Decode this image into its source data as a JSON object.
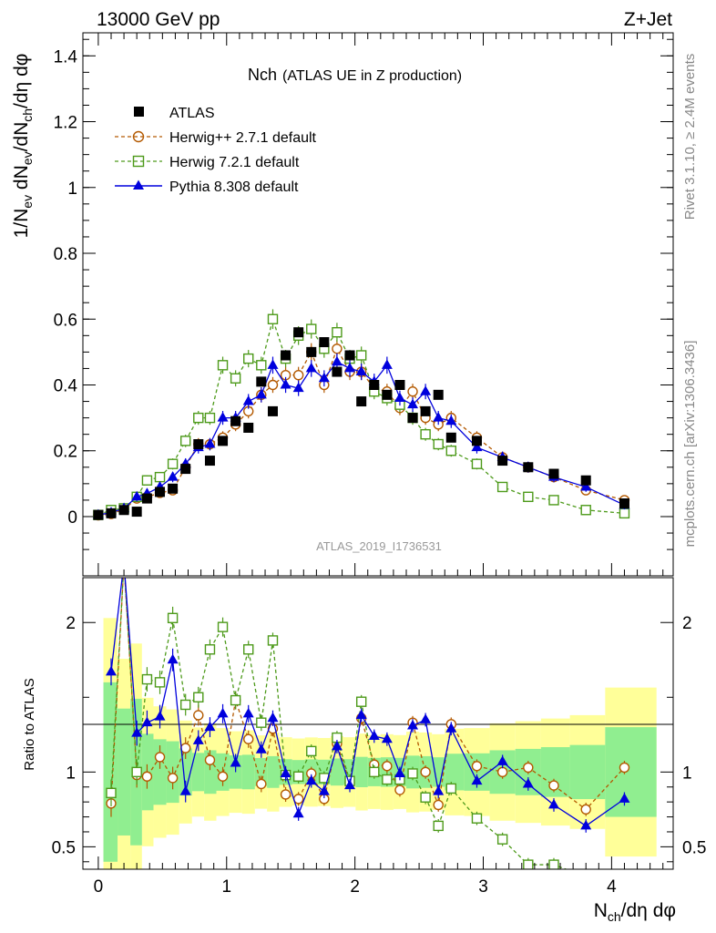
{
  "header": {
    "energy_label": "13000 GeV pp",
    "process_label": "Z+Jet",
    "rivet_label": "Rivet 3.1.10, ≥ 2.4M events",
    "mcplots_label": "mcplots.cern.ch [arXiv:1306.3436]",
    "analysis_label": "ATLAS_2019_I1736531"
  },
  "colors": {
    "data": "#000000",
    "herwigpp": "#b35900",
    "herwig7": "#4d9a1a",
    "pythia": "#0000dd",
    "band_inner": "#90ee90",
    "band_outer": "#ffff99"
  },
  "chart_data": [
    {
      "name": "main",
      "type": "scatter",
      "title_main": "Nch",
      "title_sub": "(ATLAS UE in Z production)",
      "ylabel": "1/N_ev dN_ev/dN_ch/dη dφ",
      "ylim": [
        -0.18,
        1.47
      ],
      "xlim": [
        -0.12,
        4.48
      ],
      "yticks": [
        "0",
        "0.2",
        "0.4",
        "0.6",
        "0.8",
        "1",
        "1.2",
        "1.4"
      ],
      "legend": [
        "ATLAS",
        "Herwig++ 2.7.1 default",
        "Herwig 7.2.1 default",
        "Pythia 8.308 default"
      ],
      "x": [
        0.0,
        0.1,
        0.2,
        0.3,
        0.38,
        0.48,
        0.58,
        0.68,
        0.78,
        0.87,
        0.97,
        1.07,
        1.17,
        1.27,
        1.36,
        1.46,
        1.56,
        1.66,
        1.76,
        1.86,
        1.96,
        2.05,
        2.15,
        2.25,
        2.35,
        2.45,
        2.55,
        2.65,
        2.75,
        2.95,
        3.15,
        3.35,
        3.55,
        3.8,
        4.1
      ],
      "series": [
        {
          "name": "ATLAS",
          "values": [
            0.005,
            0.01,
            0.02,
            0.015,
            0.055,
            0.075,
            0.085,
            0.145,
            0.22,
            0.17,
            0.23,
            0.29,
            0.27,
            0.41,
            0.32,
            0.49,
            0.56,
            0.5,
            0.53,
            0.44,
            0.49,
            0.35,
            0.4,
            0.37,
            0.4,
            0.3,
            0.32,
            0.37,
            0.24,
            0.23,
            0.17,
            0.15,
            0.13,
            0.11,
            0.04
          ]
        },
        {
          "name": "Herwig++ 2.7.1 default",
          "values": [
            0.004,
            0.008,
            0.022,
            0.055,
            0.06,
            0.072,
            0.08,
            0.15,
            0.22,
            0.22,
            0.24,
            0.28,
            0.32,
            0.37,
            0.4,
            0.43,
            0.43,
            0.5,
            0.4,
            0.51,
            0.44,
            0.44,
            0.39,
            0.38,
            0.33,
            0.38,
            0.3,
            0.28,
            0.3,
            0.24,
            0.18,
            0.15,
            0.12,
            0.08,
            0.05
          ]
        },
        {
          "name": "Herwig 7.2.1 default",
          "values": [
            0.005,
            0.02,
            0.025,
            0.06,
            0.11,
            0.12,
            0.16,
            0.23,
            0.3,
            0.3,
            0.46,
            0.42,
            0.48,
            0.46,
            0.6,
            0.48,
            0.55,
            0.57,
            0.51,
            0.56,
            0.48,
            0.49,
            0.38,
            0.36,
            0.34,
            0.3,
            0.25,
            0.22,
            0.2,
            0.16,
            0.09,
            0.06,
            0.05,
            0.02,
            0.01
          ]
        },
        {
          "name": "Pythia 8.308 default",
          "values": [
            0.005,
            0.012,
            0.025,
            0.06,
            0.07,
            0.09,
            0.12,
            0.16,
            0.21,
            0.22,
            0.3,
            0.3,
            0.35,
            0.37,
            0.46,
            0.4,
            0.39,
            0.45,
            0.42,
            0.47,
            0.45,
            0.44,
            0.41,
            0.46,
            0.36,
            0.34,
            0.38,
            0.3,
            0.29,
            0.21,
            0.18,
            0.15,
            0.12,
            0.09,
            0.035
          ]
        }
      ]
    },
    {
      "name": "ratio",
      "type": "line",
      "ylabel": "Ratio to ATLAS",
      "xlabel": "N_ch/dη dφ",
      "ylim": [
        0.35,
        2.3
      ],
      "xlim": [
        -0.12,
        4.48
      ],
      "xticks": [
        "0",
        "1",
        "2",
        "3",
        "4"
      ],
      "yticks": [
        "0.5",
        "1",
        "2"
      ],
      "x": [
        0.1,
        0.2,
        0.3,
        0.38,
        0.48,
        0.58,
        0.68,
        0.78,
        0.87,
        0.97,
        1.07,
        1.17,
        1.27,
        1.36,
        1.46,
        1.56,
        1.66,
        1.76,
        1.86,
        1.96,
        2.05,
        2.15,
        2.25,
        2.35,
        2.45,
        2.55,
        2.65,
        2.75,
        2.95,
        3.15,
        3.35,
        3.55,
        3.8,
        4.1
      ],
      "series": [
        {
          "name": "Herwig++ 2.7.1 default",
          "values": [
            0.79,
            2.4,
            0.98,
            0.97,
            1.1,
            0.96,
            1.16,
            1.38,
            1.08,
            0.97,
            1.48,
            1.22,
            0.92,
            1.29,
            0.85,
            0.82,
            0.99,
            0.82,
            1.19,
            0.93,
            1.36,
            1.05,
            1.04,
            0.88,
            1.33,
            1.0,
            0.78,
            1.32,
            1.04,
            1.0,
            1.03,
            0.91,
            0.75,
            1.03
          ]
        },
        {
          "name": "Herwig 7.2.1 default",
          "values": [
            0.86,
            2.4,
            1.0,
            1.62,
            1.6,
            2.03,
            1.45,
            1.5,
            1.82,
            1.97,
            1.48,
            1.82,
            1.33,
            1.88,
            0.98,
            0.97,
            1.14,
            0.96,
            1.23,
            0.94,
            1.47,
            1.0,
            0.95,
            0.95,
            0.99,
            0.83,
            0.64,
            0.89,
            0.69,
            0.55,
            0.38,
            0.38,
            0.3,
            0.3
          ]
        },
        {
          "name": "Pythia 8.308 default",
          "values": [
            1.67,
            2.4,
            1.26,
            1.33,
            1.37,
            1.75,
            0.87,
            1.21,
            1.3,
            1.39,
            1.06,
            1.39,
            1.15,
            1.36,
            0.99,
            0.72,
            0.94,
            0.87,
            1.17,
            0.91,
            1.38,
            1.24,
            1.22,
            0.99,
            1.31,
            1.35,
            0.87,
            1.29,
            0.94,
            1.07,
            0.92,
            0.78,
            0.64,
            0.82
          ]
        }
      ]
    }
  ]
}
